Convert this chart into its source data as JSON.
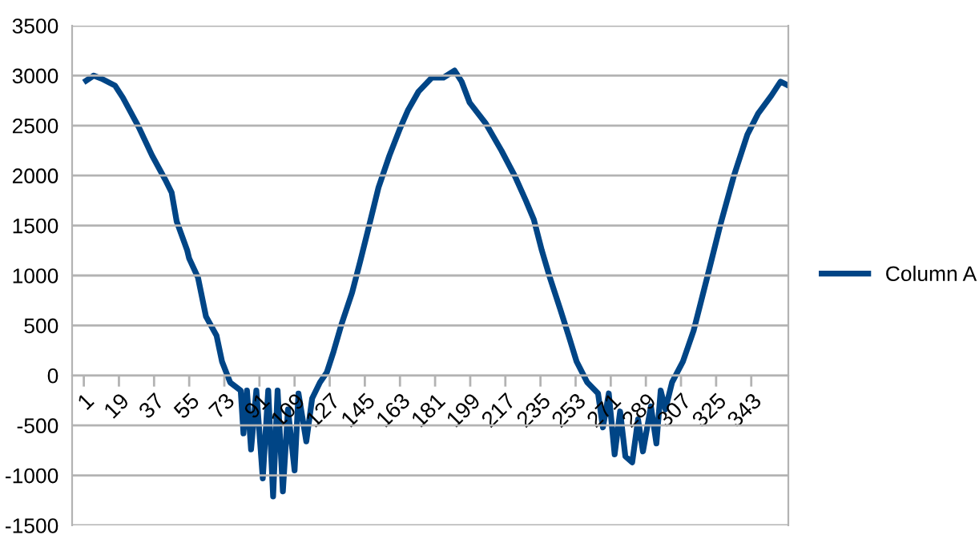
{
  "chart_data": {
    "type": "line",
    "legend": "right",
    "grid": "y",
    "marker": "none",
    "line_style": "solid",
    "x": [
      2.2,
      6,
      10,
      17,
      21,
      29,
      36,
      42.7,
      46,
      48.6,
      54,
      55,
      59.5,
      63.6,
      69,
      71.8,
      76,
      81.4,
      82.8,
      84.6,
      86.7,
      89.4,
      92.7,
      95.5,
      98,
      100.3,
      103,
      105.6,
      109,
      111,
      115,
      118,
      122,
      125.5,
      129,
      133,
      138.5,
      142.6,
      146.7,
      152,
      157.6,
      163,
      167,
      172.5,
      179.3,
      185.3,
      191,
      194.6,
      198.7,
      207,
      215,
      222,
      227.5,
      231.6,
      235.7,
      239.8,
      245,
      249.4,
      253.5,
      259,
      264.5,
      267,
      270,
      273,
      275.8,
      278.5,
      282,
      285,
      287.5,
      291.6,
      294.4,
      296.6,
      299,
      302.4,
      308,
      313.5,
      320.4,
      327.2,
      334,
      341,
      346.5,
      353.3,
      358,
      361
    ],
    "series": [
      {
        "name": "Column A",
        "color": "#004586",
        "values": [
          2950,
          3000,
          2970,
          2900,
          2780,
          2490,
          2200,
          1960,
          1830,
          1540,
          1250,
          1170,
          980,
          590,
          400,
          140,
          -70,
          -150,
          -580,
          -150,
          -740,
          -150,
          -1030,
          -150,
          -1210,
          -150,
          -1160,
          -340,
          -950,
          -180,
          -660,
          -230,
          -70,
          30,
          240,
          510,
          830,
          1140,
          1460,
          1880,
          2200,
          2470,
          2650,
          2840,
          2980,
          2980,
          3050,
          2940,
          2730,
          2520,
          2250,
          1990,
          1750,
          1560,
          1250,
          980,
          670,
          400,
          140,
          -70,
          -180,
          -520,
          -180,
          -790,
          -360,
          -810,
          -870,
          -440,
          -760,
          -310,
          -680,
          -150,
          -340,
          -70,
          140,
          450,
          980,
          1510,
          1990,
          2410,
          2620,
          2800,
          2940,
          2910
        ]
      }
    ],
    "xlim": [
      -5,
      362
    ],
    "xticks": [
      1,
      19,
      37,
      55,
      73,
      91,
      109,
      127,
      145,
      163,
      181,
      199,
      217,
      235,
      253,
      271,
      289,
      307,
      325,
      343
    ],
    "ylim": [
      -1500,
      3500
    ],
    "yticks": [
      -1500,
      -1000,
      -500,
      0,
      500,
      1000,
      1500,
      2000,
      2500,
      3000,
      3500
    ]
  }
}
